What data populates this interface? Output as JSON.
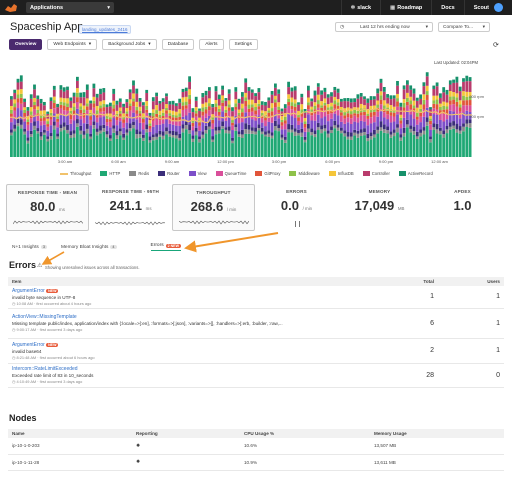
{
  "topbar": {
    "app_selector": "Applications",
    "nav": [
      {
        "label": "slack",
        "icon": "slack-icon"
      },
      {
        "label": "Roadmap",
        "icon": "roadmap-icon"
      },
      {
        "label": "Docs",
        "icon": ""
      },
      {
        "label": "Scout",
        "icon": ""
      }
    ]
  },
  "header": {
    "title": "Spaceship App",
    "env_badge": "landing_updates_2416",
    "time_range": "Last 12 hrs ending now",
    "compare": "Compare To..."
  },
  "tabs": [
    {
      "label": "Overview",
      "active": true
    },
    {
      "label": "Web Endpoints"
    },
    {
      "label": "Background Jobs"
    },
    {
      "label": "Database"
    },
    {
      "label": "Alerts"
    },
    {
      "label": "Settings"
    }
  ],
  "last_updated": "Last Updated: 02:04PM",
  "chart_data": {
    "type": "bar",
    "stacked": true,
    "x_ticks": [
      "3:00 am",
      "6:00 am",
      "9:00 am",
      "12:00 pm",
      "3:00 pm",
      "6:00 pm",
      "9:00 pm",
      "12:00 am"
    ],
    "y_right_ticks": [
      "800 rpm",
      "400 rpm"
    ],
    "series": [
      {
        "name": "HTTP",
        "color": "#1fa874"
      },
      {
        "name": "Redis",
        "color": "#8a8a8a"
      },
      {
        "name": "Router",
        "color": "#3b2e7a"
      },
      {
        "name": "View",
        "color": "#7d4fc9"
      },
      {
        "name": "QueueTime",
        "color": "#d94f9a"
      },
      {
        "name": "GitProxy",
        "color": "#e1553a"
      },
      {
        "name": "Middleware",
        "color": "#8fc24a"
      },
      {
        "name": "InfluxDB",
        "color": "#f5c63a"
      },
      {
        "name": "Controller",
        "color": "#b93b6c"
      },
      {
        "name": "ActiveRecord",
        "color": "#17916b"
      }
    ],
    "line_series": {
      "name": "Throughput",
      "color": "#f1c26b"
    }
  },
  "metrics": [
    {
      "label": "RESPONSE TIME - MEAN",
      "value": "80.0",
      "unit": "ms",
      "boxed": true
    },
    {
      "label": "RESPONSE TIME - 95TH",
      "value": "241.1",
      "unit": "ms",
      "boxed": false
    },
    {
      "label": "THROUGHPUT",
      "value": "268.6",
      "unit": "/ min",
      "boxed": true
    },
    {
      "label": "ERRORS",
      "value": "0.0",
      "unit": "/ min",
      "boxed": false
    },
    {
      "label": "MEMORY",
      "value": "17,049",
      "unit": "MB",
      "boxed": false
    },
    {
      "label": "APDEX",
      "value": "1.0",
      "unit": "",
      "boxed": false
    }
  ],
  "insight_tabs": [
    {
      "label": "N+1 Insights",
      "count": "3"
    },
    {
      "label": "Memory Bloat Insights",
      "count": "4"
    },
    {
      "label": "Errors",
      "count": "2 NEW",
      "active": true
    }
  ],
  "errors": {
    "title": "Errors",
    "subtitle": "Showing unresolved issues across all transactions.",
    "columns": {
      "item": "Item",
      "total": "Total",
      "users": "Users"
    },
    "rows": [
      {
        "name": "ArgumentError",
        "new": "NEW",
        "message": "invalid byte sequence in UTF-8",
        "meta_time": "10:08 AM",
        "meta_first": "first occurred about 4 hours ago",
        "total": "1",
        "users": "1"
      },
      {
        "name": "ActionView::MissingTemplate",
        "new": "",
        "message": "Missing template public/index, application/index with {:locale=>[:en], :formats=>[:json], :variants=>[], :handlers=>[:erb, :builder, :raw,...",
        "meta_time": "9:00:17 AM",
        "meta_first": "first occurred 3 days ago",
        "total": "6",
        "users": "1"
      },
      {
        "name": "ArgumentError",
        "new": "NEW",
        "message": "invalid base64",
        "meta_time": "8:21:48 AM",
        "meta_first": "first occurred about 6 hours ago",
        "total": "2",
        "users": "1"
      },
      {
        "name": "Intercom::RateLimitExceeded",
        "new": "",
        "message": "Exceeded rate limit of 83 in 10_seconds",
        "meta_time": "4:10:49 AM",
        "meta_first": "first occurred 3 days ago",
        "total": "28",
        "users": "0"
      }
    ]
  },
  "nodes": {
    "title": "Nodes",
    "columns": {
      "name": "Name",
      "reporting": "Reporting",
      "cpu": "CPU Usage %",
      "memory": "Memory Usage"
    },
    "rows": [
      {
        "name": "ip-10-1-0-203",
        "cpu": "10.6%",
        "memory": "13,507 MB"
      },
      {
        "name": "ip-10-1-11-28",
        "cpu": "10.9%",
        "memory": "13,611 MB"
      }
    ]
  }
}
